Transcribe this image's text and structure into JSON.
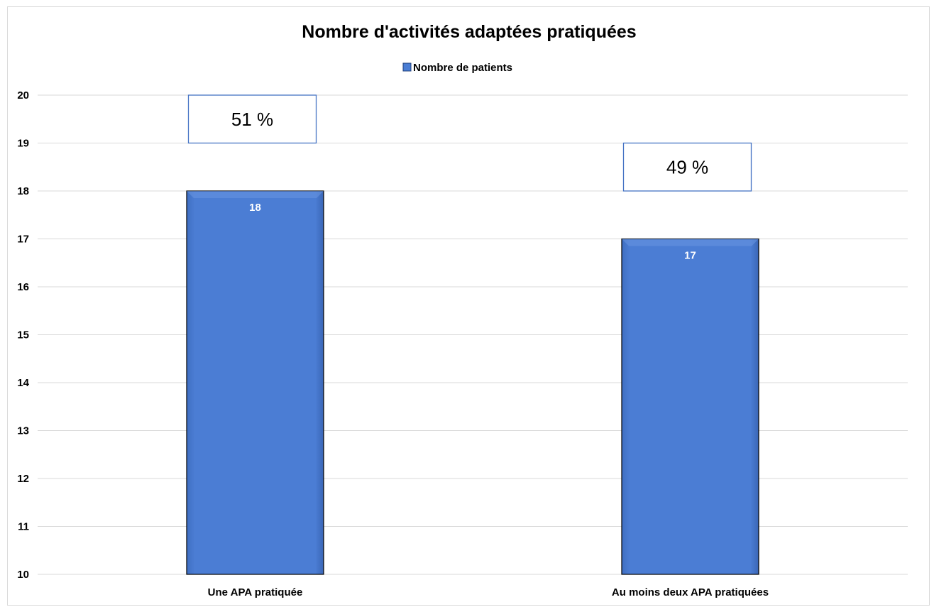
{
  "chart_data": {
    "type": "bar",
    "title": "Nombre d'activités adaptées pratiquées",
    "xlabel": "",
    "ylabel": "",
    "categories": [
      "Une APA pratiquée",
      "Au moins deux APA pratiquées"
    ],
    "series": [
      {
        "name": "Nombre de patients",
        "values": [
          18,
          17
        ],
        "color": "#4a7dd4"
      }
    ],
    "data_labels": [
      "18",
      "17"
    ],
    "annotations": [
      "51 %",
      "49 %"
    ],
    "ylim": [
      10,
      20
    ],
    "yticks": [
      "10",
      "11",
      "12",
      "13",
      "14",
      "15",
      "16",
      "17",
      "18",
      "19",
      "20"
    ],
    "grid": true,
    "legend_position": "top"
  },
  "colors": {
    "bar": "#4a7dd4",
    "bar_edge": "#000000",
    "annotation_border": "#4472c4",
    "grid": "#d9d9d9"
  }
}
